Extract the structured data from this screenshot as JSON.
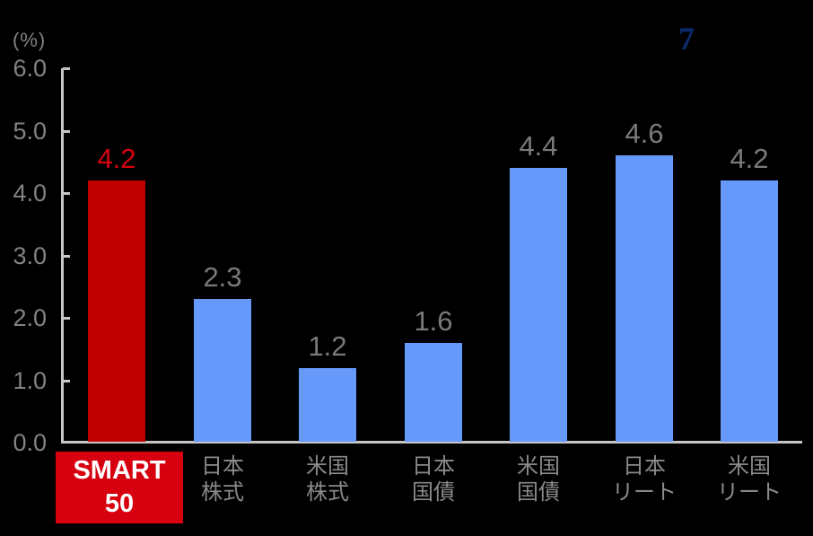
{
  "page": {
    "background": "#000000",
    "page_number": "7",
    "page_number_color": "#0b2b6b"
  },
  "chart_data": {
    "type": "bar",
    "title": "",
    "unit_label": "(%)",
    "categories": [
      [
        "SMART",
        "50"
      ],
      [
        "日本",
        "株式"
      ],
      [
        "米国",
        "株式"
      ],
      [
        "日本",
        "国債"
      ],
      [
        "米国",
        "国債"
      ],
      [
        "日本",
        "リート"
      ],
      [
        "米国",
        "リート"
      ]
    ],
    "values": [
      4.2,
      2.3,
      1.2,
      1.6,
      4.4,
      4.6,
      4.2
    ],
    "value_labels": [
      "4.2",
      "2.3",
      "1.2",
      "1.6",
      "4.4",
      "4.6",
      "4.2"
    ],
    "highlight_index": 0,
    "ylim": [
      0.0,
      6.0
    ],
    "yticks": [
      0,
      1,
      2,
      3,
      4,
      5,
      6
    ],
    "ytick_labels": [
      "0.0",
      "1.0",
      "2.0",
      "3.0",
      "4.0",
      "5.0",
      "6.0"
    ],
    "grid": false,
    "legend": false,
    "colors": {
      "default_bar": "#6699fa",
      "highlight_bar": "#c00000",
      "highlight_label_bg": "#d7000f",
      "highlight_label_text": "#ffffff",
      "highlight_value_text": "#d7000f",
      "value_text": "#7a7a7a",
      "tick_text": "#828282",
      "category_text": "#8a8a8a",
      "axis_line": "#c6c6c6"
    }
  }
}
